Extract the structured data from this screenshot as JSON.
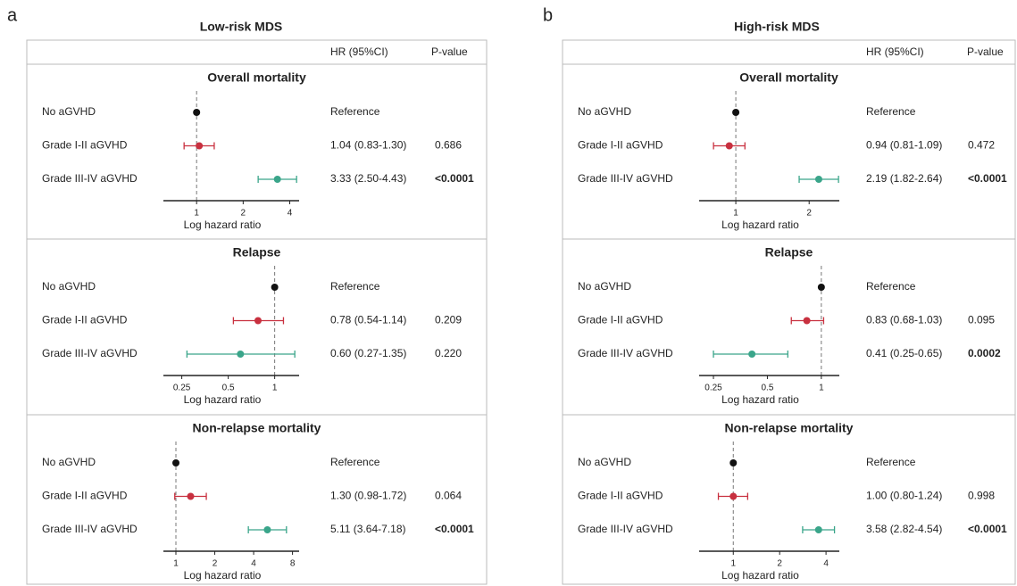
{
  "panels": [
    {
      "label": "a",
      "title": "Low-risk MDS",
      "columns": [
        "HR (95%CI)",
        "P-value"
      ]
    },
    {
      "label": "b",
      "title": "High-risk MDS",
      "columns": [
        "HR (95%CI)",
        "P-value"
      ]
    }
  ],
  "chart_data": [
    {
      "type": "forest",
      "title": "Overall mortality",
      "categories": [
        "No aGVHD",
        "Grade I-II aGVHD",
        "Grade III-IV aGVHD"
      ],
      "values": [
        1,
        1.04,
        3.33
      ],
      "ci_low": [
        null,
        0.83,
        2.5
      ],
      "ci_high": [
        null,
        1.3,
        4.43
      ],
      "value_labels": [
        "Reference",
        "1.04 (0.83-1.30)",
        "3.33 (2.50-4.43)"
      ],
      "p_values": [
        null,
        "0.686",
        "<0.0001"
      ],
      "colors": [
        "#111111",
        "#c8303f",
        "#3aa58a"
      ],
      "p_colors": [
        null,
        "#333333",
        "#9e1b32"
      ],
      "xlabel": "Log hazard ratio",
      "log_scale": true,
      "xlim": [
        0.61,
        4.6
      ],
      "xticks": [
        1,
        2,
        4
      ],
      "reference_line": 1
    },
    {
      "type": "forest",
      "title": "Relapse",
      "categories": [
        "No aGVHD",
        "Grade I-II aGVHD",
        "Grade III-IV aGVHD"
      ],
      "values": [
        1,
        0.78,
        0.6
      ],
      "ci_low": [
        null,
        0.54,
        0.27
      ],
      "ci_high": [
        null,
        1.14,
        1.35
      ],
      "value_labels": [
        "Reference",
        "0.78 (0.54-1.14)",
        "0.60 (0.27-1.35)"
      ],
      "p_values": [
        null,
        "0.209",
        "0.220"
      ],
      "colors": [
        "#111111",
        "#c8303f",
        "#3aa58a"
      ],
      "p_colors": [
        null,
        "#333333",
        "#333333"
      ],
      "xlabel": "Log hazard ratio",
      "log_scale": true,
      "xlim": [
        0.19,
        1.44
      ],
      "xticks": [
        0.25,
        0.5,
        1
      ],
      "reference_line": 1
    },
    {
      "type": "forest",
      "title": "Non-relapse mortality",
      "categories": [
        "No aGVHD",
        "Grade I-II aGVHD",
        "Grade III-IV aGVHD"
      ],
      "values": [
        1,
        1.3,
        5.11
      ],
      "ci_low": [
        null,
        0.98,
        3.64
      ],
      "ci_high": [
        null,
        1.72,
        7.18
      ],
      "value_labels": [
        "Reference",
        "1.30 (0.98-1.72)",
        "5.11 (3.64-7.18)"
      ],
      "p_values": [
        null,
        "0.064",
        "<0.0001"
      ],
      "colors": [
        "#111111",
        "#c8303f",
        "#3aa58a"
      ],
      "p_colors": [
        null,
        "#333333",
        "#9e1b32"
      ],
      "xlabel": "Log hazard ratio",
      "log_scale": true,
      "xlim": [
        0.8,
        9.0
      ],
      "xticks": [
        1,
        2,
        4,
        8
      ],
      "reference_line": 1
    },
    {
      "type": "forest",
      "title": "Overall mortality",
      "categories": [
        "No aGVHD",
        "Grade I-II aGVHD",
        "Grade III-IV aGVHD"
      ],
      "values": [
        1,
        0.94,
        2.19
      ],
      "ci_low": [
        null,
        0.81,
        1.82
      ],
      "ci_high": [
        null,
        1.09,
        2.64
      ],
      "value_labels": [
        "Reference",
        "0.94 (0.81-1.09)",
        "2.19 (1.82-2.64)"
      ],
      "p_values": [
        null,
        "0.472",
        "<0.0001"
      ],
      "colors": [
        "#111111",
        "#c8303f",
        "#3aa58a"
      ],
      "p_colors": [
        null,
        "#333333",
        "#9e1b32"
      ],
      "xlabel": "Log hazard ratio",
      "log_scale": true,
      "xlim": [
        0.707,
        2.66
      ],
      "xticks": [
        1,
        2
      ],
      "reference_line": 1
    },
    {
      "type": "forest",
      "title": "Relapse",
      "categories": [
        "No aGVHD",
        "Grade I-II aGVHD",
        "Grade III-IV aGVHD"
      ],
      "values": [
        1,
        0.83,
        0.41
      ],
      "ci_low": [
        null,
        0.68,
        0.25
      ],
      "ci_high": [
        null,
        1.03,
        0.65
      ],
      "value_labels": [
        "Reference",
        "0.83 (0.68-1.03)",
        "0.41 (0.25-0.65)"
      ],
      "p_values": [
        null,
        "0.095",
        "0.0002"
      ],
      "colors": [
        "#111111",
        "#c8303f",
        "#3aa58a"
      ],
      "p_colors": [
        null,
        "#333333",
        "#9e1b32"
      ],
      "xlabel": "Log hazard ratio",
      "log_scale": true,
      "xlim": [
        0.208,
        1.26
      ],
      "xticks": [
        0.25,
        0.5,
        1
      ],
      "reference_line": 1
    },
    {
      "type": "forest",
      "title": "Non-relapse mortality",
      "categories": [
        "No aGVHD",
        "Grade I-II aGVHD",
        "Grade III-IV aGVHD"
      ],
      "values": [
        1,
        1.0,
        3.58
      ],
      "ci_low": [
        null,
        0.8,
        2.82
      ],
      "ci_high": [
        null,
        1.24,
        4.54
      ],
      "value_labels": [
        "Reference",
        "1.00 (0.80-1.24)",
        "3.58 (2.82-4.54)"
      ],
      "p_values": [
        null,
        "0.998",
        "<0.0001"
      ],
      "colors": [
        "#111111",
        "#c8303f",
        "#3aa58a"
      ],
      "p_colors": [
        null,
        "#333333",
        "#9e1b32"
      ],
      "xlabel": "Log hazard ratio",
      "log_scale": true,
      "xlim": [
        0.6,
        4.88
      ],
      "xticks": [
        1,
        2,
        4
      ],
      "reference_line": 1
    }
  ]
}
